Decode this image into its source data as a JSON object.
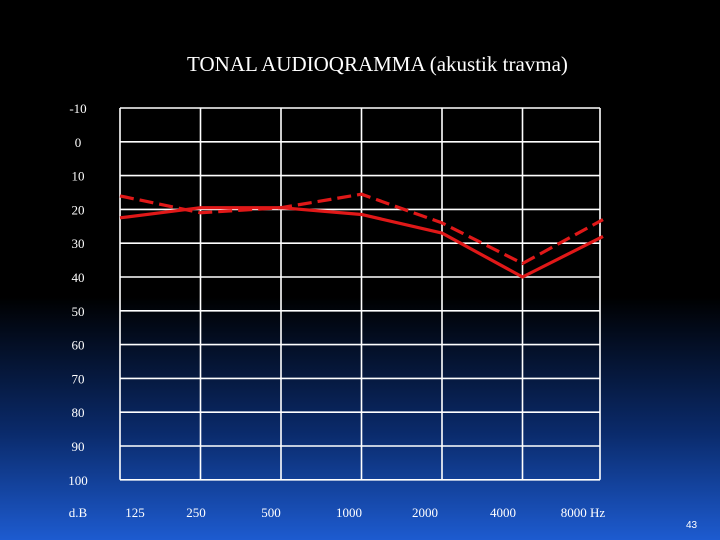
{
  "slide": {
    "title": "TONAL AUDIOQRAMMA (akustik travma)",
    "page_number": "43"
  },
  "chart_data": {
    "type": "line",
    "title": "TONAL AUDIOQRAMMA (akustik travma)",
    "y_unit_label": "d.B",
    "y_ticks": [
      -10,
      0,
      10,
      20,
      30,
      40,
      50,
      60,
      70,
      80,
      90,
      100
    ],
    "ylim": [
      -10,
      100
    ],
    "y_inverted": true,
    "x_categories": [
      "125",
      "250",
      "500",
      "1000",
      "2000",
      "4000",
      "8000 Hz"
    ],
    "grid": true,
    "colors": {
      "grid": "#ffffff",
      "series": "#e01818"
    },
    "series": [
      {
        "style": "solid",
        "values": [
          22.5,
          19.5,
          19.5,
          21.5,
          27,
          40,
          28
        ]
      },
      {
        "style": "dashed",
        "values": [
          16,
          21,
          19.5,
          15.5,
          24,
          36,
          23
        ]
      }
    ]
  }
}
